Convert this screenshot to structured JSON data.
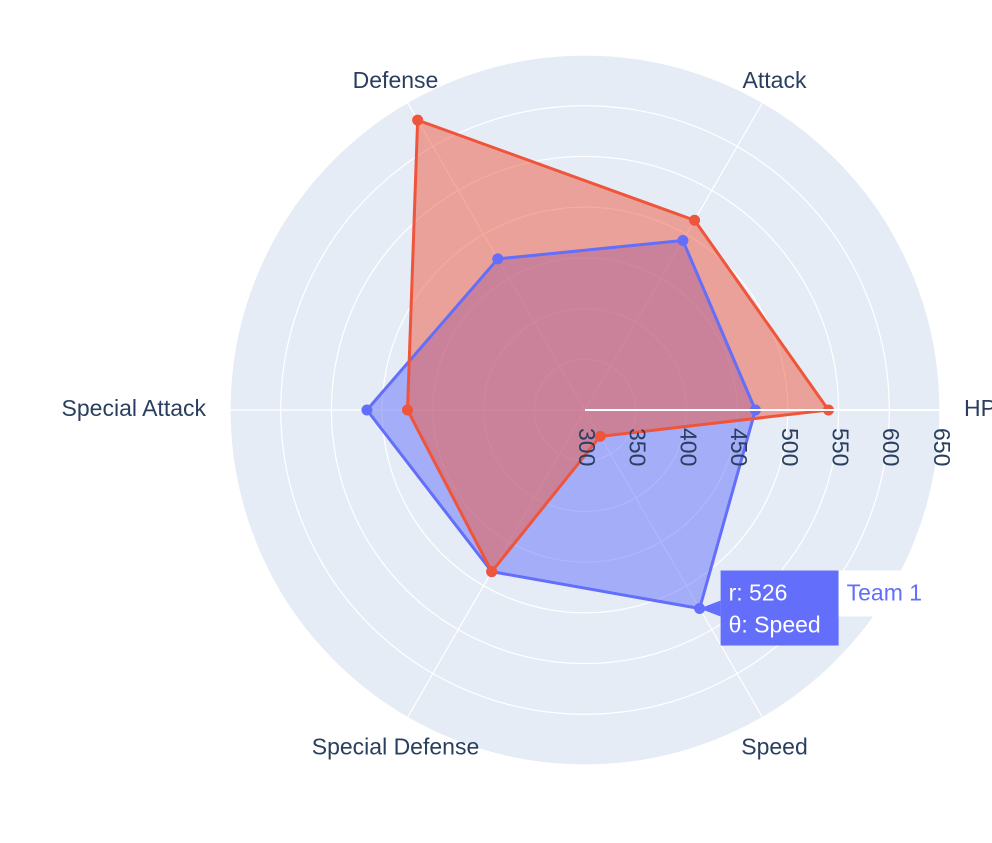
{
  "chart_data": {
    "type": "radar",
    "categories": [
      "HP",
      "Attack",
      "Defense",
      "Special Attack",
      "Special Defense",
      "Speed"
    ],
    "radial_range": [
      300,
      650
    ],
    "radial_ticks": [
      "300",
      "350",
      "400",
      "450",
      "500",
      "550",
      "600",
      "650"
    ],
    "grid": true,
    "series": [
      {
        "name": "Team 1",
        "color": "#636efa",
        "values": [
          468,
          493,
          472,
          515,
          484,
          526
        ]
      },
      {
        "name": "",
        "color": "#ef553b",
        "values": [
          540,
          516,
          630,
          475,
          484,
          330
        ]
      }
    ],
    "hover": {
      "series_index": 0,
      "point_index": 5,
      "line_r": "r: 526",
      "line_theta": "θ: Speed",
      "series_label": "Team 1"
    }
  },
  "colors": {
    "polar_bg": "#e5ecf6",
    "grid": "#ffffff",
    "text": "#2a3f5f"
  }
}
